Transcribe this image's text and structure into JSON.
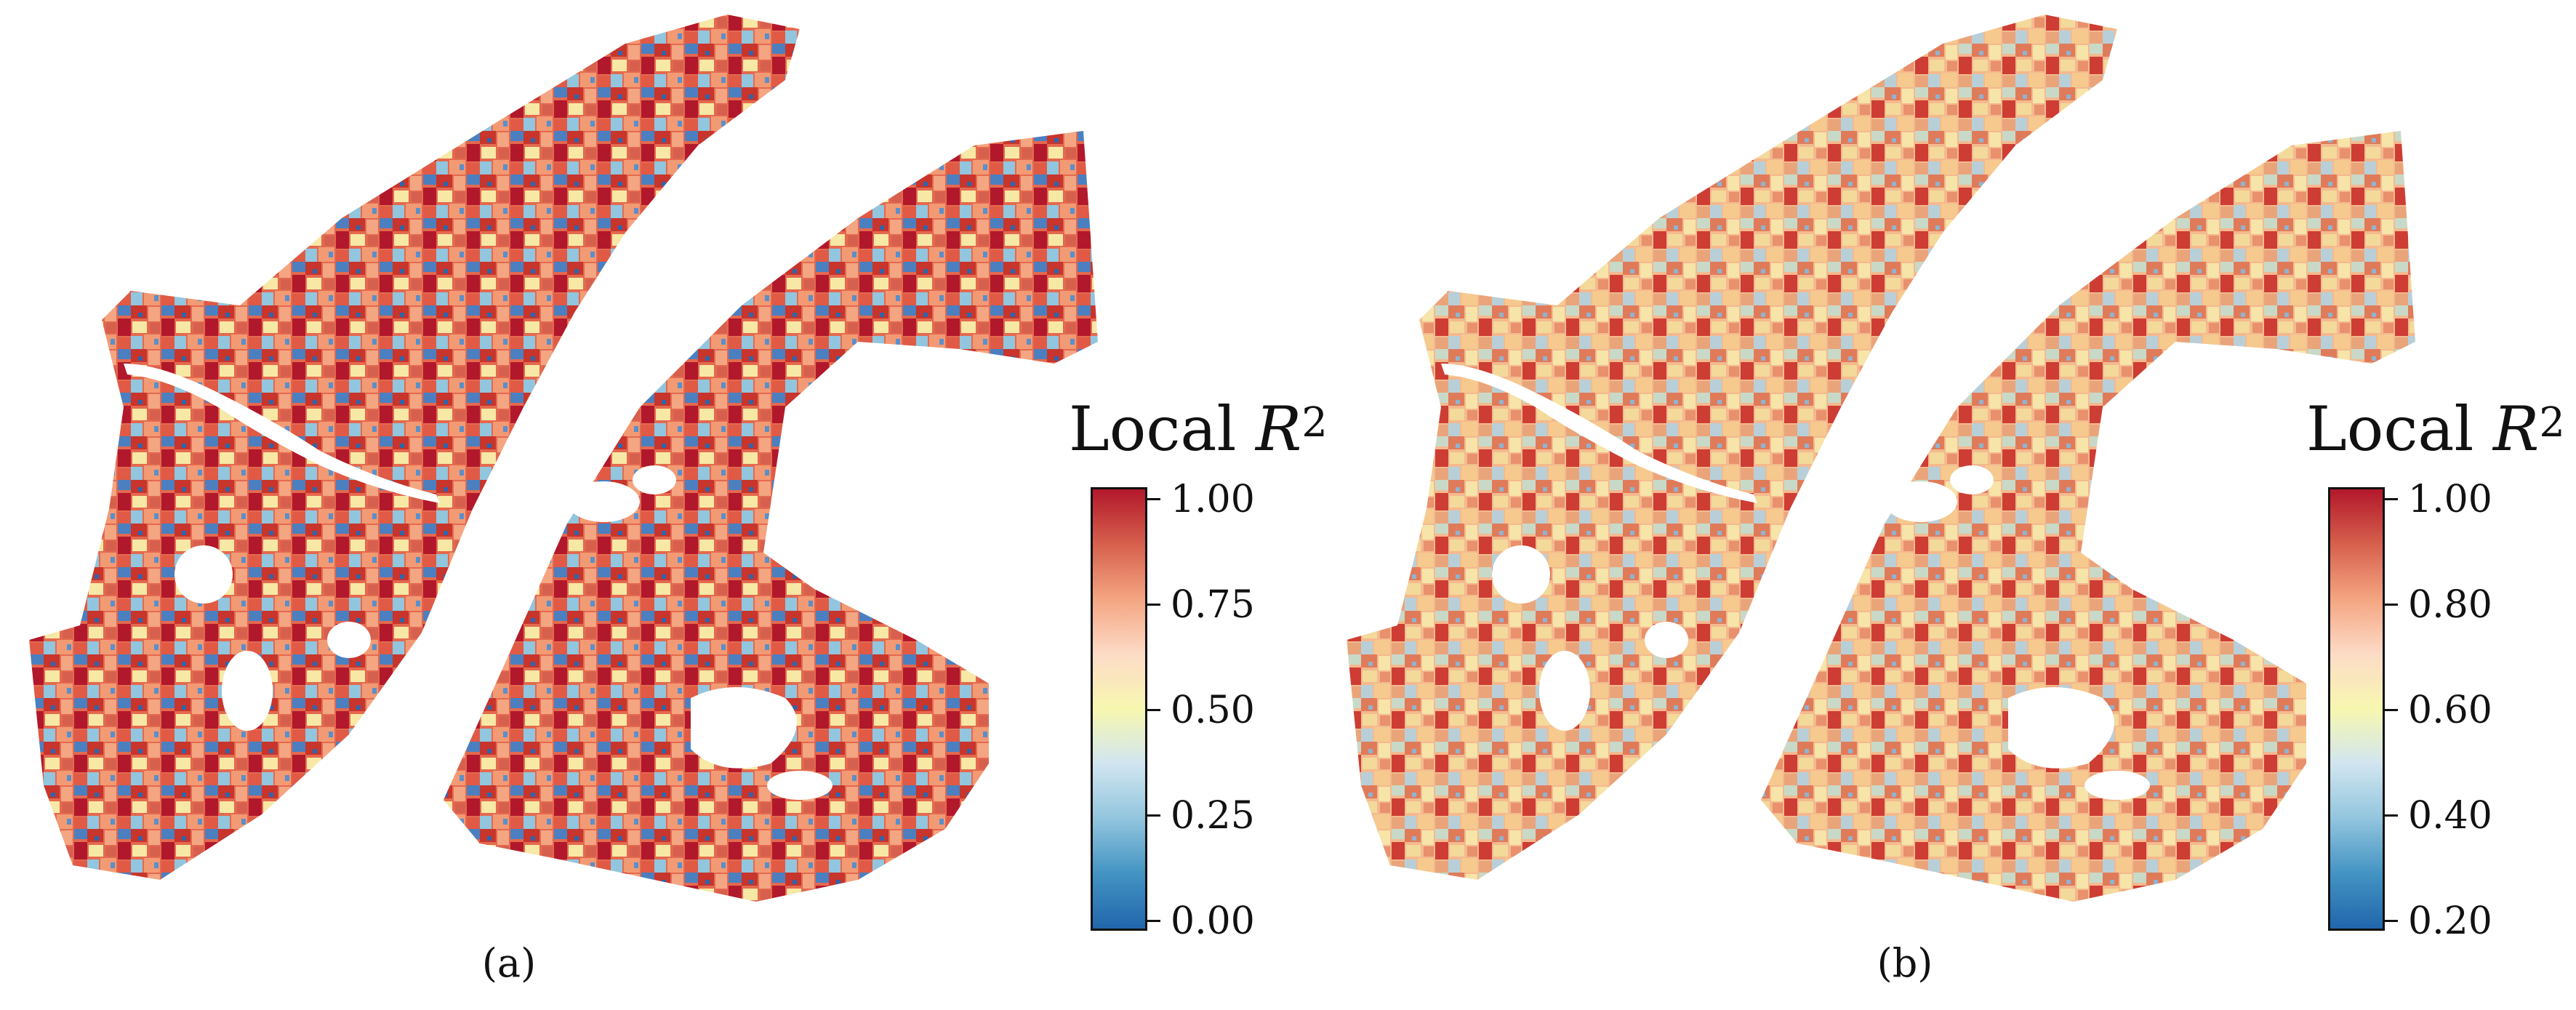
{
  "panels": [
    {
      "label": "(a)",
      "legend": {
        "title_prefix": "Local ",
        "title_var": "R",
        "title_sup": "2",
        "ticks": [
          "1.00",
          "0.75",
          "0.50",
          "0.25",
          "0.00"
        ]
      }
    },
    {
      "label": "(b)",
      "legend": {
        "title_prefix": "Local ",
        "title_var": "R",
        "title_sup": "2",
        "ticks": [
          "1.00",
          "0.80",
          "0.60",
          "0.40",
          "0.20"
        ]
      }
    }
  ],
  "colors": {
    "high": "#b2182b",
    "mid_high": "#f4a582",
    "mid": "#f7f7b0",
    "mid_low": "#92c5de",
    "low": "#2166ac",
    "water": "#ffffff"
  }
}
